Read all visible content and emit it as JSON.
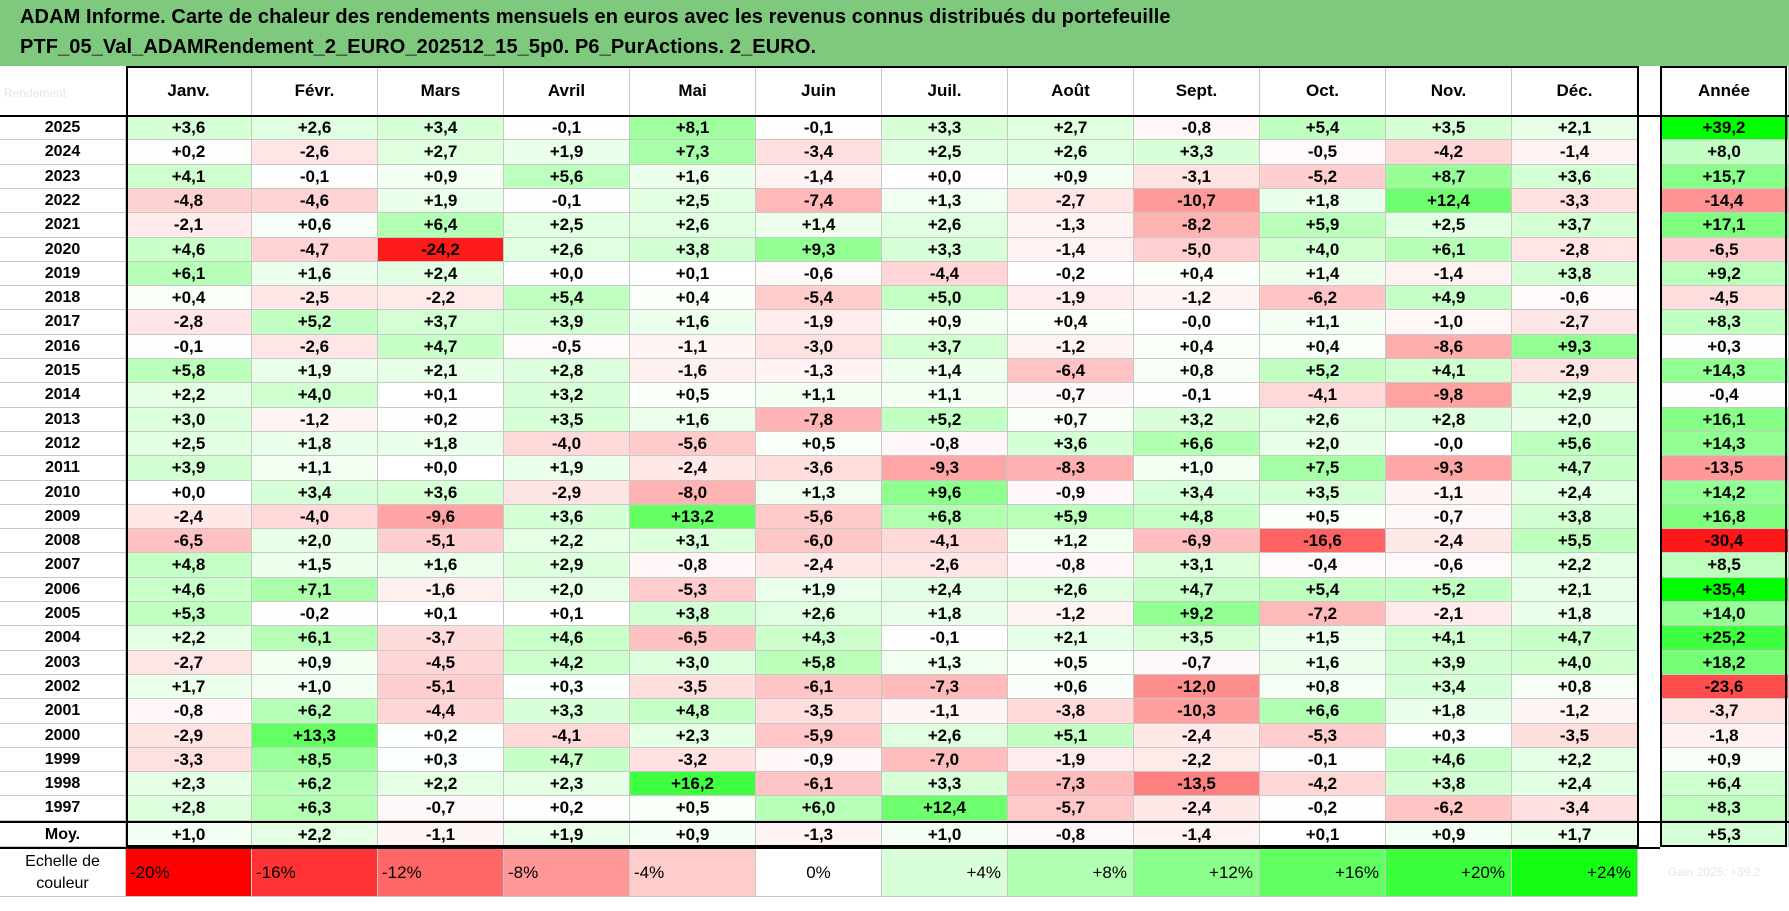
{
  "title": {
    "line1": "ADAM Informe. Carte de chaleur des rendements mensuels en euros avec les revenus connus distribués du portefeuille",
    "line2": "PTF_05_Val_ADAMRendement_2_EURO_202512_15_5p0. P6_PurActions. 2_EURO."
  },
  "corner_label": "Rendement",
  "scale_label_right": "Gain 2025: +39,2",
  "colors": {
    "red_max": "#ff0000",
    "white": "#ffffff",
    "green_max": "#00ff00",
    "title_bg": "#7fc97f"
  },
  "chart_data": {
    "type": "heatmap",
    "title": "ADAM Informe. Carte de chaleur des rendements mensuels en euros avec les revenus connus distribués du portefeuille",
    "columns": [
      "Janv.",
      "Févr.",
      "Mars",
      "Avril",
      "Mai",
      "Juin",
      "Juil.",
      "Août",
      "Sept.",
      "Oct.",
      "Nov.",
      "Déc."
    ],
    "year_column": "Année",
    "rows": [
      {
        "label": "2025",
        "cells": [
          "+3,6",
          "+2,6",
          "+3,4",
          "-0,1",
          "+8,1",
          "-0,1",
          "+3,3",
          "+2,7",
          "-0,8",
          "+5,4",
          "+3,5",
          "+2,1"
        ],
        "annual": "+39,2"
      },
      {
        "label": "2024",
        "cells": [
          "+0,2",
          "-2,6",
          "+2,7",
          "+1,9",
          "+7,3",
          "-3,4",
          "+2,5",
          "+2,6",
          "+3,3",
          "-0,5",
          "-4,2",
          "-1,4"
        ],
        "annual": "+8,0"
      },
      {
        "label": "2023",
        "cells": [
          "+4,1",
          "-0,1",
          "+0,9",
          "+5,6",
          "+1,6",
          "-1,4",
          "+0,0",
          "+0,9",
          "-3,1",
          "-5,2",
          "+8,7",
          "+3,6"
        ],
        "annual": "+15,7"
      },
      {
        "label": "2022",
        "cells": [
          "-4,8",
          "-4,6",
          "+1,9",
          "-0,1",
          "+2,5",
          "-7,4",
          "+1,3",
          "-2,7",
          "-10,7",
          "+1,8",
          "+12,4",
          "-3,3"
        ],
        "annual": "-14,4"
      },
      {
        "label": "2021",
        "cells": [
          "-2,1",
          "+0,6",
          "+6,4",
          "+2,5",
          "+2,6",
          "+1,4",
          "+2,6",
          "-1,3",
          "-8,2",
          "+5,9",
          "+2,5",
          "+3,7"
        ],
        "annual": "+17,1"
      },
      {
        "label": "2020",
        "cells": [
          "+4,6",
          "-4,7",
          "-24,2",
          "+2,6",
          "+3,8",
          "+9,3",
          "+3,3",
          "-1,4",
          "-5,0",
          "+4,0",
          "+6,1",
          "-2,8"
        ],
        "annual": "-6,5"
      },
      {
        "label": "2019",
        "cells": [
          "+6,1",
          "+1,6",
          "+2,4",
          "+0,0",
          "+0,1",
          "-0,6",
          "-4,4",
          "-0,2",
          "+0,4",
          "+1,4",
          "-1,4",
          "+3,8"
        ],
        "annual": "+9,2"
      },
      {
        "label": "2018",
        "cells": [
          "+0,4",
          "-2,5",
          "-2,2",
          "+5,4",
          "+0,4",
          "-5,4",
          "+5,0",
          "-1,9",
          "-1,2",
          "-6,2",
          "+4,9",
          "-0,6"
        ],
        "annual": "-4,5"
      },
      {
        "label": "2017",
        "cells": [
          "-2,8",
          "+5,2",
          "+3,7",
          "+3,9",
          "+1,6",
          "-1,9",
          "+0,9",
          "+0,4",
          "-0,0",
          "+1,1",
          "-1,0",
          "-2,7"
        ],
        "annual": "+8,3"
      },
      {
        "label": "2016",
        "cells": [
          "-0,1",
          "-2,6",
          "+4,7",
          "-0,5",
          "-1,1",
          "-3,0",
          "+3,7",
          "-1,2",
          "+0,4",
          "+0,4",
          "-8,6",
          "+9,3"
        ],
        "annual": "+0,3"
      },
      {
        "label": "2015",
        "cells": [
          "+5,8",
          "+1,9",
          "+2,1",
          "+2,8",
          "-1,6",
          "-1,3",
          "+1,4",
          "-6,4",
          "+0,8",
          "+5,2",
          "+4,1",
          "-2,9"
        ],
        "annual": "+14,3"
      },
      {
        "label": "2014",
        "cells": [
          "+2,2",
          "+4,0",
          "+0,1",
          "+3,2",
          "+0,5",
          "+1,1",
          "+1,1",
          "-0,7",
          "-0,1",
          "-4,1",
          "-9,8",
          "+2,9"
        ],
        "annual": "-0,4"
      },
      {
        "label": "2013",
        "cells": [
          "+3,0",
          "-1,2",
          "+0,2",
          "+3,5",
          "+1,6",
          "-7,8",
          "+5,2",
          "+0,7",
          "+3,2",
          "+2,6",
          "+2,8",
          "+2,0"
        ],
        "annual": "+16,1"
      },
      {
        "label": "2012",
        "cells": [
          "+2,5",
          "+1,8",
          "+1,8",
          "-4,0",
          "-5,6",
          "+0,5",
          "-0,8",
          "+3,6",
          "+6,6",
          "+2,0",
          "-0,0",
          "+5,6"
        ],
        "annual": "+14,3"
      },
      {
        "label": "2011",
        "cells": [
          "+3,9",
          "+1,1",
          "+0,0",
          "+1,9",
          "-2,4",
          "-3,6",
          "-9,3",
          "-8,3",
          "+1,0",
          "+7,5",
          "-9,3",
          "+4,7"
        ],
        "annual": "-13,5"
      },
      {
        "label": "2010",
        "cells": [
          "+0,0",
          "+3,4",
          "+3,6",
          "-2,9",
          "-8,0",
          "+1,3",
          "+9,6",
          "-0,9",
          "+3,4",
          "+3,5",
          "-1,1",
          "+2,4"
        ],
        "annual": "+14,2"
      },
      {
        "label": "2009",
        "cells": [
          "-2,4",
          "-4,0",
          "-9,6",
          "+3,6",
          "+13,2",
          "-5,6",
          "+6,8",
          "+5,9",
          "+4,8",
          "+0,5",
          "-0,7",
          "+3,8"
        ],
        "annual": "+16,8"
      },
      {
        "label": "2008",
        "cells": [
          "-6,5",
          "+2,0",
          "-5,1",
          "+2,2",
          "+3,1",
          "-6,0",
          "-4,1",
          "+1,2",
          "-6,9",
          "-16,6",
          "-2,4",
          "+5,5"
        ],
        "annual": "-30,4"
      },
      {
        "label": "2007",
        "cells": [
          "+4,8",
          "+1,5",
          "+1,6",
          "+2,9",
          "-0,8",
          "-2,4",
          "-2,6",
          "-0,8",
          "+3,1",
          "-0,4",
          "-0,6",
          "+2,2"
        ],
        "annual": "+8,5"
      },
      {
        "label": "2006",
        "cells": [
          "+4,6",
          "+7,1",
          "-1,6",
          "+2,0",
          "-5,3",
          "+1,9",
          "+2,4",
          "+2,6",
          "+4,7",
          "+5,4",
          "+5,2",
          "+2,1"
        ],
        "annual": "+35,4"
      },
      {
        "label": "2005",
        "cells": [
          "+5,3",
          "-0,2",
          "+0,1",
          "+0,1",
          "+3,8",
          "+2,6",
          "+1,8",
          "-1,2",
          "+9,2",
          "-7,2",
          "-2,1",
          "+1,8"
        ],
        "annual": "+14,0"
      },
      {
        "label": "2004",
        "cells": [
          "+2,2",
          "+6,1",
          "-3,7",
          "+4,6",
          "-6,5",
          "+4,3",
          "-0,1",
          "+2,1",
          "+3,5",
          "+1,5",
          "+4,1",
          "+4,7"
        ],
        "annual": "+25,2"
      },
      {
        "label": "2003",
        "cells": [
          "-2,7",
          "+0,9",
          "-4,5",
          "+4,2",
          "+3,0",
          "+5,8",
          "+1,3",
          "+0,5",
          "-0,7",
          "+1,6",
          "+3,9",
          "+4,0"
        ],
        "annual": "+18,2"
      },
      {
        "label": "2002",
        "cells": [
          "+1,7",
          "+1,0",
          "-5,1",
          "+0,3",
          "-3,5",
          "-6,1",
          "-7,3",
          "+0,6",
          "-12,0",
          "+0,8",
          "+3,4",
          "+0,8"
        ],
        "annual": "-23,6"
      },
      {
        "label": "2001",
        "cells": [
          "-0,8",
          "+6,2",
          "-4,4",
          "+3,3",
          "+4,8",
          "-3,5",
          "-1,1",
          "-3,8",
          "-10,3",
          "+6,6",
          "+1,8",
          "-1,2"
        ],
        "annual": "-3,7"
      },
      {
        "label": "2000",
        "cells": [
          "-2,9",
          "+13,3",
          "+0,2",
          "-4,1",
          "+2,3",
          "-5,9",
          "+2,6",
          "+5,1",
          "-2,4",
          "-5,3",
          "+0,3",
          "-3,5"
        ],
        "annual": "-1,8"
      },
      {
        "label": "1999",
        "cells": [
          "-3,3",
          "+8,5",
          "+0,3",
          "+4,7",
          "-3,2",
          "-0,9",
          "-7,0",
          "-1,9",
          "-2,2",
          "-0,1",
          "+4,6",
          "+2,2"
        ],
        "annual": "+0,9"
      },
      {
        "label": "1998",
        "cells": [
          "+2,3",
          "+6,2",
          "+2,2",
          "+2,3",
          "+16,2",
          "-6,1",
          "+3,3",
          "-7,3",
          "-13,5",
          "-4,2",
          "+3,8",
          "+2,4"
        ],
        "annual": "+6,4"
      },
      {
        "label": "1997",
        "cells": [
          "+2,8",
          "+6,3",
          "-0,7",
          "+0,2",
          "+0,5",
          "+6,0",
          "+12,4",
          "-5,7",
          "-2,4",
          "-0,2",
          "-6,2",
          "-3,4"
        ],
        "annual": "+8,3"
      }
    ],
    "average_row": {
      "label": "Moy.",
      "cells": [
        "+1,0",
        "+2,2",
        "-1,1",
        "+1,9",
        "+0,9",
        "-1,3",
        "+1,0",
        "-0,8",
        "-1,4",
        "+0,1",
        "+0,9",
        "+1,7"
      ],
      "annual": "+5,3"
    },
    "legend": {
      "label": "Echelle de couleur",
      "steps": [
        {
          "text": "-20%",
          "value": -20
        },
        {
          "text": "-16%",
          "value": -16
        },
        {
          "text": "-12%",
          "value": -12
        },
        {
          "text": "-8%",
          "value": -8
        },
        {
          "text": "-4%",
          "value": -4
        },
        {
          "text": "0%",
          "value": 0
        },
        {
          "text": "+4%",
          "value": 4
        },
        {
          "text": "+8%",
          "value": 8
        },
        {
          "text": "+12%",
          "value": 12
        },
        {
          "text": "+16%",
          "value": 16
        },
        {
          "text": "+20%",
          "value": 20
        },
        {
          "text": "+24%",
          "value": 24
        }
      ]
    },
    "color_scale": {
      "month_saturation": 16,
      "year_saturation": 32,
      "month_neg_saturation": 20
    }
  }
}
